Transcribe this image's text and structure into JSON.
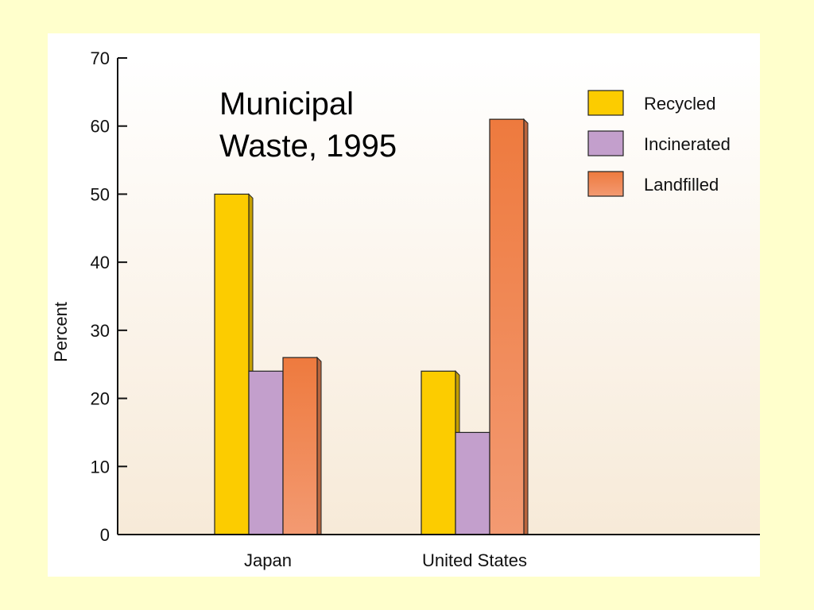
{
  "chart_data": {
    "type": "bar",
    "title_lines": [
      "Municipal",
      "Waste, 1995"
    ],
    "ylabel": "Percent",
    "xlabel": "",
    "ylim": [
      0,
      70
    ],
    "yticks": [
      0,
      10,
      20,
      30,
      40,
      50,
      60,
      70
    ],
    "categories": [
      "Japan",
      "United States"
    ],
    "series": [
      {
        "name": "Recycled",
        "color": "#fccc00",
        "values": [
          50,
          24
        ]
      },
      {
        "name": "Incinerated",
        "color": "#c39fcc",
        "values": [
          24,
          15
        ]
      },
      {
        "name": "Landfilled",
        "color": "#f0824e",
        "values": [
          26,
          61
        ]
      }
    ],
    "legend_position": "top-right",
    "grid": false
  }
}
